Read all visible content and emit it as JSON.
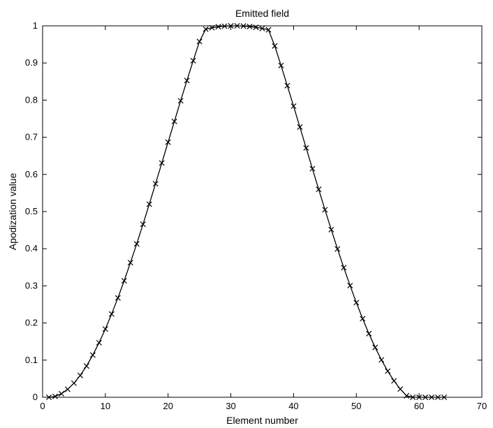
{
  "chart_data": {
    "type": "line",
    "title": "Emitted field",
    "xlabel": "Element number",
    "ylabel": "Apodization value",
    "xlim": [
      0,
      70
    ],
    "ylim": [
      0,
      1
    ],
    "xticks": [
      "0",
      "10",
      "20",
      "30",
      "40",
      "50",
      "60",
      "70"
    ],
    "yticks": [
      "0",
      "0.1",
      "0.2",
      "0.3",
      "0.4",
      "0.5",
      "0.6",
      "0.7",
      "0.8",
      "0.9",
      "1"
    ],
    "grid": false,
    "series": [
      {
        "marker": "x",
        "line": "solid",
        "color": "#000000",
        "x": [
          1,
          2,
          3,
          4,
          5,
          6,
          7,
          8,
          9,
          10,
          11,
          12,
          13,
          14,
          15,
          16,
          17,
          18,
          19,
          20,
          21,
          22,
          23,
          24,
          25,
          26,
          27,
          28,
          29,
          30,
          31,
          32,
          33,
          34,
          35,
          36,
          37,
          38,
          39,
          40,
          41,
          42,
          43,
          44,
          45,
          46,
          47,
          48,
          49,
          50,
          51,
          52,
          53,
          54,
          55,
          56,
          57,
          58,
          59,
          60,
          61,
          62,
          63,
          64
        ],
        "y": [
          0,
          0.0024,
          0.0096,
          0.0215,
          0.038,
          0.0589,
          0.0842,
          0.1136,
          0.1469,
          0.1838,
          0.2241,
          0.2675,
          0.3137,
          0.3624,
          0.4132,
          0.4658,
          0.5198,
          0.5749,
          0.6307,
          0.6868,
          0.7427,
          0.7982,
          0.8528,
          0.9061,
          0.9578,
          0.9911,
          0.9949,
          0.9975,
          0.9991,
          0.9999,
          1.0,
          0.9994,
          0.998,
          0.9959,
          0.993,
          0.9893,
          0.9458,
          0.8932,
          0.8389,
          0.7838,
          0.7276,
          0.6713,
          0.6153,
          0.5598,
          0.505,
          0.4514,
          0.3993,
          0.349,
          0.3008,
          0.2549,
          0.2117,
          0.1714,
          0.1343,
          0.1006,
          0.0705,
          0.0443,
          0.0221,
          0.0041,
          0.0,
          0.0,
          0.0,
          0.0,
          0.0,
          0.0
        ]
      }
    ]
  }
}
